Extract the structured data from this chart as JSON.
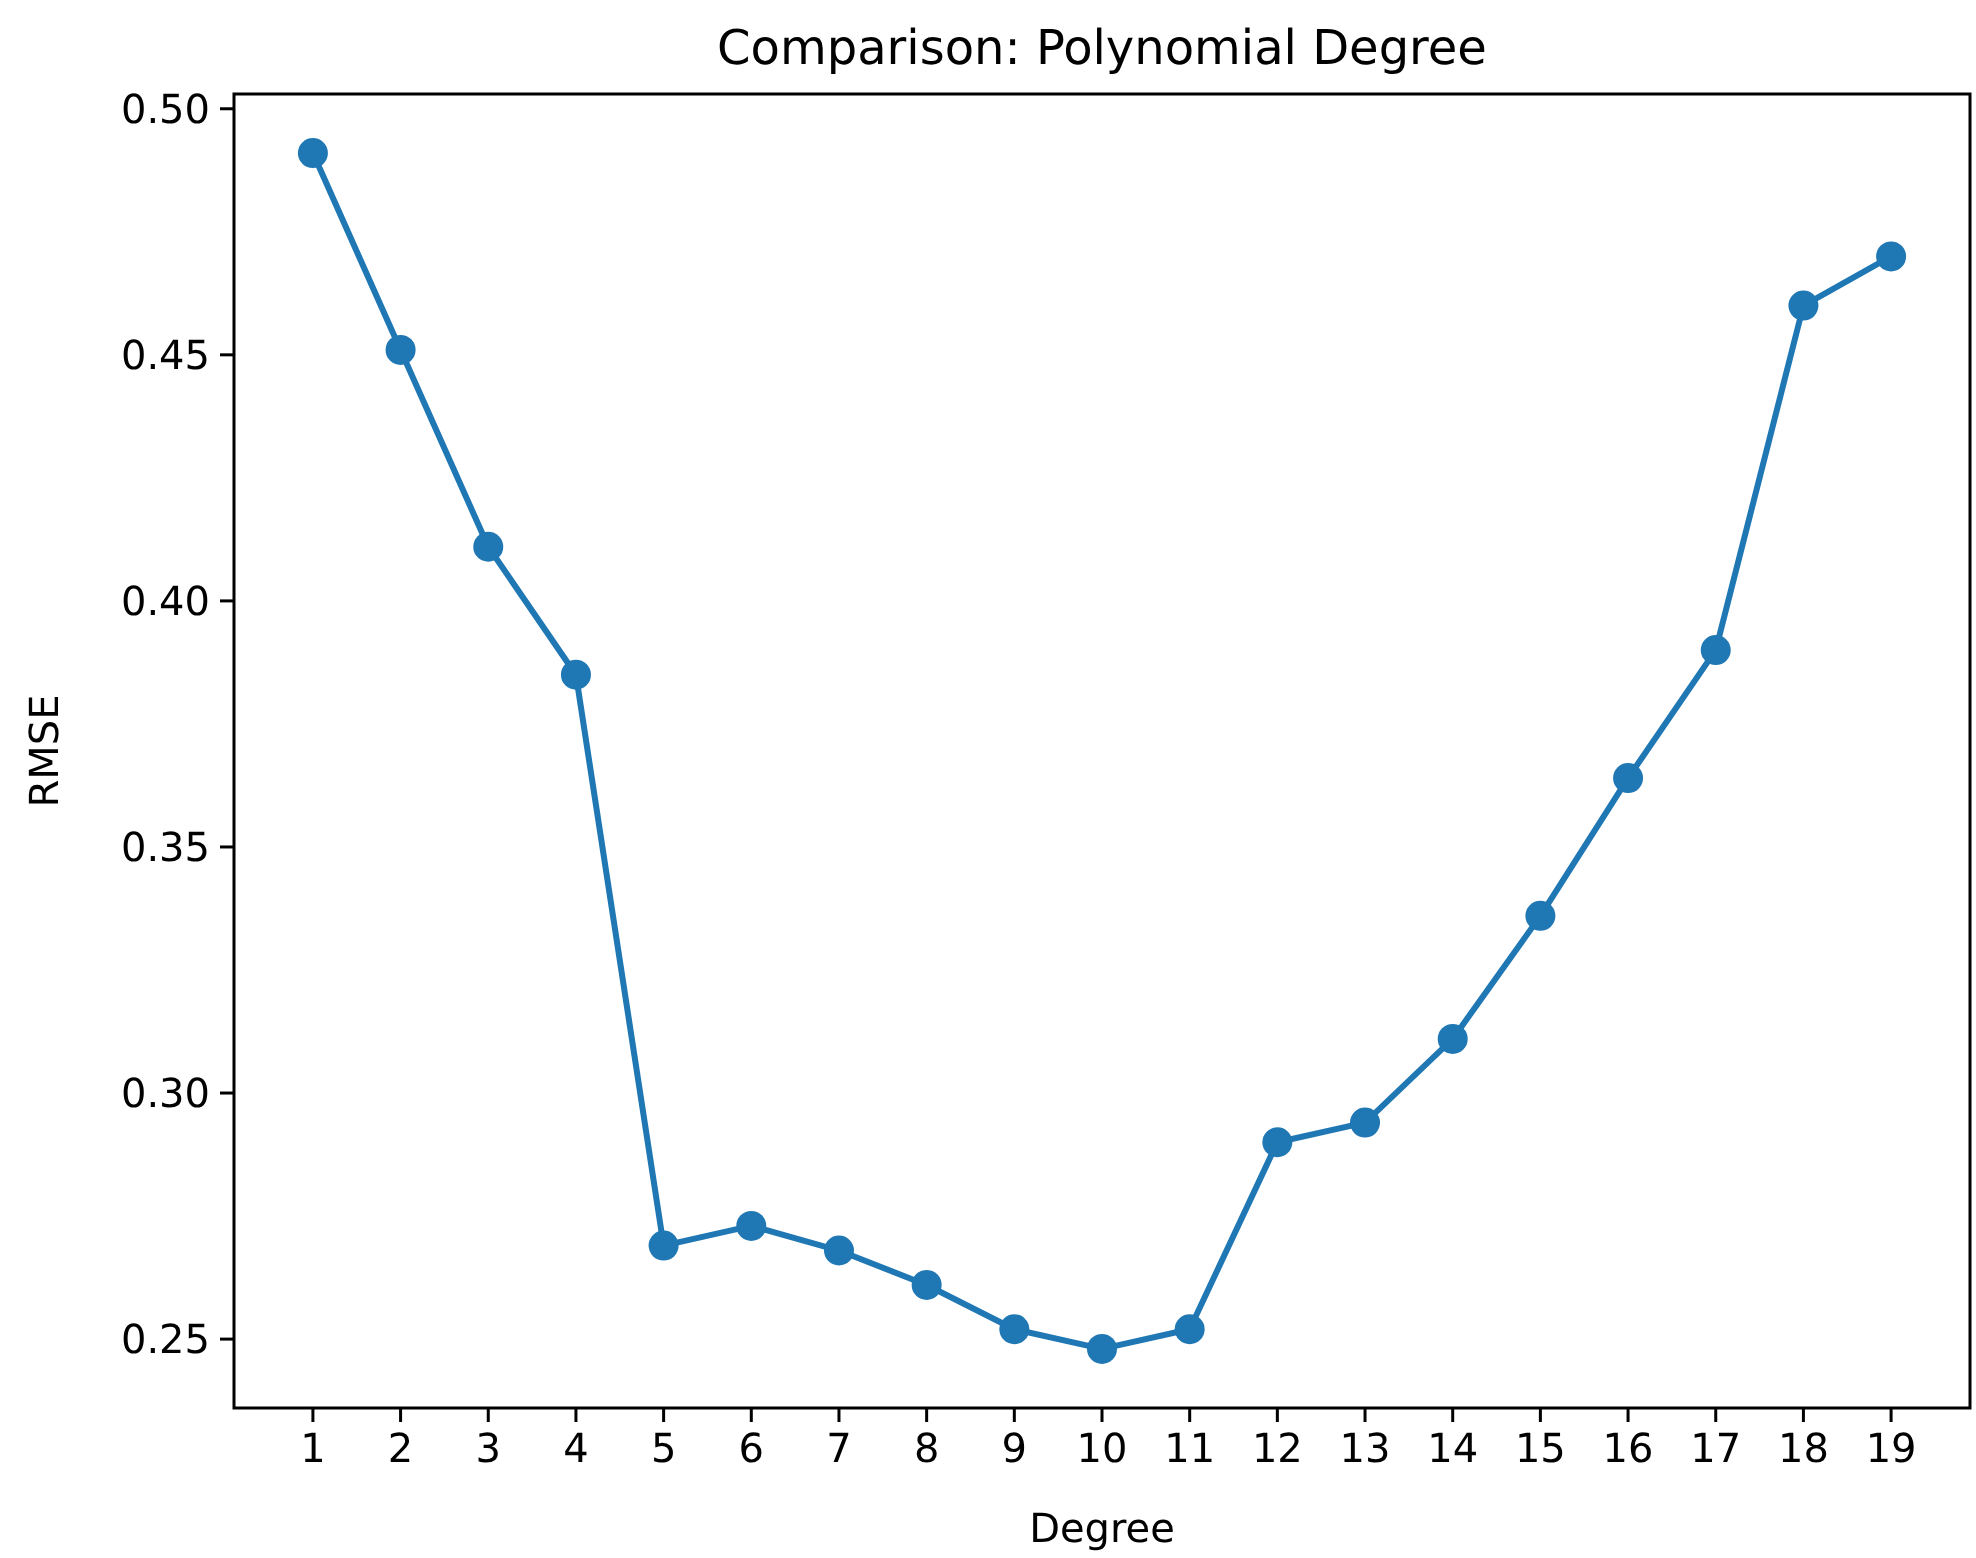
{
  "chart_data": {
    "type": "line",
    "title": "Comparison: Polynomial Degree",
    "xlabel": "Degree",
    "ylabel": "RMSE",
    "x": [
      1,
      2,
      3,
      4,
      5,
      6,
      7,
      8,
      9,
      10,
      11,
      12,
      13,
      14,
      15,
      16,
      17,
      18,
      19
    ],
    "series": [
      {
        "color": "#1f77b4",
        "values": [
          0.491,
          0.451,
          0.411,
          0.385,
          0.269,
          0.273,
          0.268,
          0.261,
          0.252,
          0.248,
          0.252,
          0.29,
          0.294,
          0.311,
          0.336,
          0.364,
          0.39,
          0.46,
          0.47
        ]
      }
    ],
    "xlim": [
      0.1,
      19.9
    ],
    "xticks": [
      1,
      2,
      3,
      4,
      5,
      6,
      7,
      8,
      9,
      10,
      11,
      12,
      13,
      14,
      15,
      16,
      17,
      18,
      19
    ],
    "ylim": [
      0.236,
      0.503
    ],
    "yticks": [
      {
        "value": 0.25,
        "label": "0.25"
      },
      {
        "value": 0.3,
        "label": "0.30"
      },
      {
        "value": 0.35,
        "label": "0.35"
      },
      {
        "value": 0.4,
        "label": "0.40"
      },
      {
        "value": 0.45,
        "label": "0.45"
      },
      {
        "value": 0.5,
        "label": "0.50"
      }
    ],
    "marker": "circle",
    "line_style": "solid",
    "grid": false
  }
}
